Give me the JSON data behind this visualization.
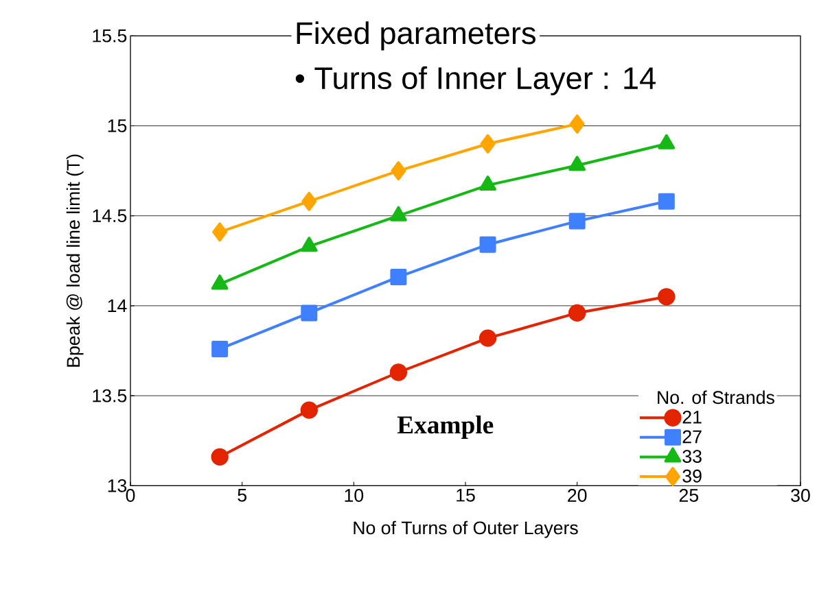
{
  "chart_data": {
    "type": "line",
    "xlabel": "No of Turns of Outer Layers",
    "ylabel": "Bpeak @ load line limit (T)",
    "legend_title": "No. of Strands",
    "annotations": [
      "Fixed parameters",
      "•    Turns of Inner Layer : 14",
      "Example"
    ],
    "x": [
      4,
      8,
      12,
      16,
      20,
      24
    ],
    "series": [
      {
        "name": "21",
        "color": "#e32400",
        "marker": "circle",
        "values": [
          13.16,
          13.42,
          13.63,
          13.82,
          13.96,
          14.05
        ]
      },
      {
        "name": "27",
        "color": "#4080ff",
        "marker": "square",
        "values": [
          13.76,
          13.96,
          14.16,
          14.34,
          14.47,
          14.58
        ]
      },
      {
        "name": "33",
        "color": "#15b815",
        "marker": "triangle",
        "values": [
          14.12,
          14.33,
          14.5,
          14.67,
          14.78,
          14.9
        ]
      },
      {
        "name": "39",
        "color": "#ffa500",
        "marker": "diamond",
        "values": [
          14.41,
          14.58,
          14.75,
          14.9,
          15.01,
          null
        ]
      }
    ],
    "xlim": [
      0,
      30
    ],
    "xticks": [
      0,
      5,
      10,
      15,
      20,
      25,
      30
    ],
    "ylim": [
      13,
      15.5
    ],
    "yticks": [
      13,
      13.5,
      14,
      14.5,
      15,
      15.5
    ],
    "grid": "y",
    "legend": "bottom right",
    "line_style": "solid"
  }
}
